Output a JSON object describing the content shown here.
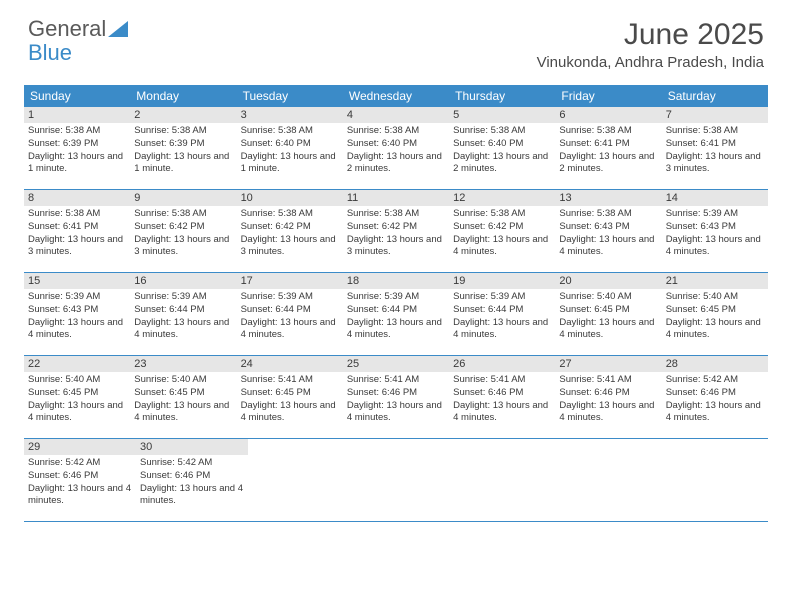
{
  "logo": {
    "text1": "General",
    "text2": "Blue"
  },
  "title": "June 2025",
  "location": "Vinukonda, Andhra Pradesh, India",
  "colors": {
    "header_bg": "#3b8bc8",
    "header_text": "#ffffff",
    "daynum_bg": "#e6e6e6",
    "text": "#3a3a3a",
    "logo_gray": "#5a5a5a",
    "logo_blue": "#3b8bc8",
    "border": "#3b8bc8",
    "page_bg": "#ffffff"
  },
  "typography": {
    "title_fontsize": 30,
    "location_fontsize": 15,
    "weekday_fontsize": 12,
    "daynum_fontsize": 11,
    "body_fontsize": 9.5,
    "font_family": "Arial"
  },
  "weekdays": [
    "Sunday",
    "Monday",
    "Tuesday",
    "Wednesday",
    "Thursday",
    "Friday",
    "Saturday"
  ],
  "days": [
    {
      "n": "1",
      "sr": "5:38 AM",
      "ss": "6:39 PM",
      "dl": "13 hours and 1 minute."
    },
    {
      "n": "2",
      "sr": "5:38 AM",
      "ss": "6:39 PM",
      "dl": "13 hours and 1 minute."
    },
    {
      "n": "3",
      "sr": "5:38 AM",
      "ss": "6:40 PM",
      "dl": "13 hours and 1 minute."
    },
    {
      "n": "4",
      "sr": "5:38 AM",
      "ss": "6:40 PM",
      "dl": "13 hours and 2 minutes."
    },
    {
      "n": "5",
      "sr": "5:38 AM",
      "ss": "6:40 PM",
      "dl": "13 hours and 2 minutes."
    },
    {
      "n": "6",
      "sr": "5:38 AM",
      "ss": "6:41 PM",
      "dl": "13 hours and 2 minutes."
    },
    {
      "n": "7",
      "sr": "5:38 AM",
      "ss": "6:41 PM",
      "dl": "13 hours and 3 minutes."
    },
    {
      "n": "8",
      "sr": "5:38 AM",
      "ss": "6:41 PM",
      "dl": "13 hours and 3 minutes."
    },
    {
      "n": "9",
      "sr": "5:38 AM",
      "ss": "6:42 PM",
      "dl": "13 hours and 3 minutes."
    },
    {
      "n": "10",
      "sr": "5:38 AM",
      "ss": "6:42 PM",
      "dl": "13 hours and 3 minutes."
    },
    {
      "n": "11",
      "sr": "5:38 AM",
      "ss": "6:42 PM",
      "dl": "13 hours and 3 minutes."
    },
    {
      "n": "12",
      "sr": "5:38 AM",
      "ss": "6:42 PM",
      "dl": "13 hours and 4 minutes."
    },
    {
      "n": "13",
      "sr": "5:38 AM",
      "ss": "6:43 PM",
      "dl": "13 hours and 4 minutes."
    },
    {
      "n": "14",
      "sr": "5:39 AM",
      "ss": "6:43 PM",
      "dl": "13 hours and 4 minutes."
    },
    {
      "n": "15",
      "sr": "5:39 AM",
      "ss": "6:43 PM",
      "dl": "13 hours and 4 minutes."
    },
    {
      "n": "16",
      "sr": "5:39 AM",
      "ss": "6:44 PM",
      "dl": "13 hours and 4 minutes."
    },
    {
      "n": "17",
      "sr": "5:39 AM",
      "ss": "6:44 PM",
      "dl": "13 hours and 4 minutes."
    },
    {
      "n": "18",
      "sr": "5:39 AM",
      "ss": "6:44 PM",
      "dl": "13 hours and 4 minutes."
    },
    {
      "n": "19",
      "sr": "5:39 AM",
      "ss": "6:44 PM",
      "dl": "13 hours and 4 minutes."
    },
    {
      "n": "20",
      "sr": "5:40 AM",
      "ss": "6:45 PM",
      "dl": "13 hours and 4 minutes."
    },
    {
      "n": "21",
      "sr": "5:40 AM",
      "ss": "6:45 PM",
      "dl": "13 hours and 4 minutes."
    },
    {
      "n": "22",
      "sr": "5:40 AM",
      "ss": "6:45 PM",
      "dl": "13 hours and 4 minutes."
    },
    {
      "n": "23",
      "sr": "5:40 AM",
      "ss": "6:45 PM",
      "dl": "13 hours and 4 minutes."
    },
    {
      "n": "24",
      "sr": "5:41 AM",
      "ss": "6:45 PM",
      "dl": "13 hours and 4 minutes."
    },
    {
      "n": "25",
      "sr": "5:41 AM",
      "ss": "6:46 PM",
      "dl": "13 hours and 4 minutes."
    },
    {
      "n": "26",
      "sr": "5:41 AM",
      "ss": "6:46 PM",
      "dl": "13 hours and 4 minutes."
    },
    {
      "n": "27",
      "sr": "5:41 AM",
      "ss": "6:46 PM",
      "dl": "13 hours and 4 minutes."
    },
    {
      "n": "28",
      "sr": "5:42 AM",
      "ss": "6:46 PM",
      "dl": "13 hours and 4 minutes."
    },
    {
      "n": "29",
      "sr": "5:42 AM",
      "ss": "6:46 PM",
      "dl": "13 hours and 4 minutes."
    },
    {
      "n": "30",
      "sr": "5:42 AM",
      "ss": "6:46 PM",
      "dl": "13 hours and 4 minutes."
    }
  ],
  "labels": {
    "sunrise": "Sunrise:",
    "sunset": "Sunset:",
    "daylight": "Daylight:"
  }
}
